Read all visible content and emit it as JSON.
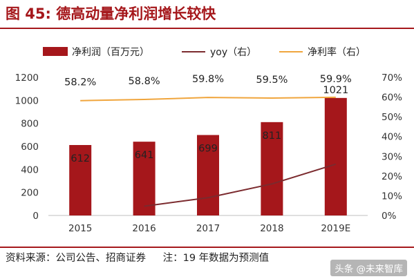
{
  "figure": {
    "title": "图 45:  德高动量净利润增长较快",
    "source": "资料来源：公司公告、招商证券",
    "note": "注：19 年数据为预测值",
    "watermark": "头条 @未来智库"
  },
  "colors": {
    "bar": "#a5171b",
    "yoy": "#7b2a2e",
    "margin": "#f0a53c",
    "accent": "#a5171b"
  },
  "chart_data": {
    "type": "bar",
    "categories": [
      "2015",
      "2016",
      "2017",
      "2018",
      "2019E"
    ],
    "series": [
      {
        "name": "净利润（百万元）",
        "type": "bar",
        "axis": "left",
        "values": [
          612,
          641,
          699,
          811,
          1021
        ],
        "labels": [
          "612",
          "641",
          "699",
          "811",
          "1021"
        ]
      },
      {
        "name": "yoy（右）",
        "type": "line",
        "axis": "right",
        "values": [
          null,
          0.047,
          0.09,
          0.16,
          0.26
        ]
      },
      {
        "name": "净利率（右）",
        "type": "line",
        "axis": "right",
        "values": [
          0.582,
          0.588,
          0.598,
          0.595,
          0.599
        ],
        "labels": [
          "58.2%",
          "58.8%",
          "59.8%",
          "59.5%",
          "59.9%"
        ]
      }
    ],
    "y_left": {
      "ylim": [
        0,
        1200
      ],
      "ticks": [
        "0",
        "200",
        "400",
        "600",
        "800",
        "1000",
        "1200"
      ]
    },
    "y_right": {
      "ylim": [
        0,
        0.7
      ],
      "ticks": [
        "0%",
        "10%",
        "20%",
        "30%",
        "40%",
        "50%",
        "60%",
        "70%"
      ]
    },
    "legend": "top"
  }
}
